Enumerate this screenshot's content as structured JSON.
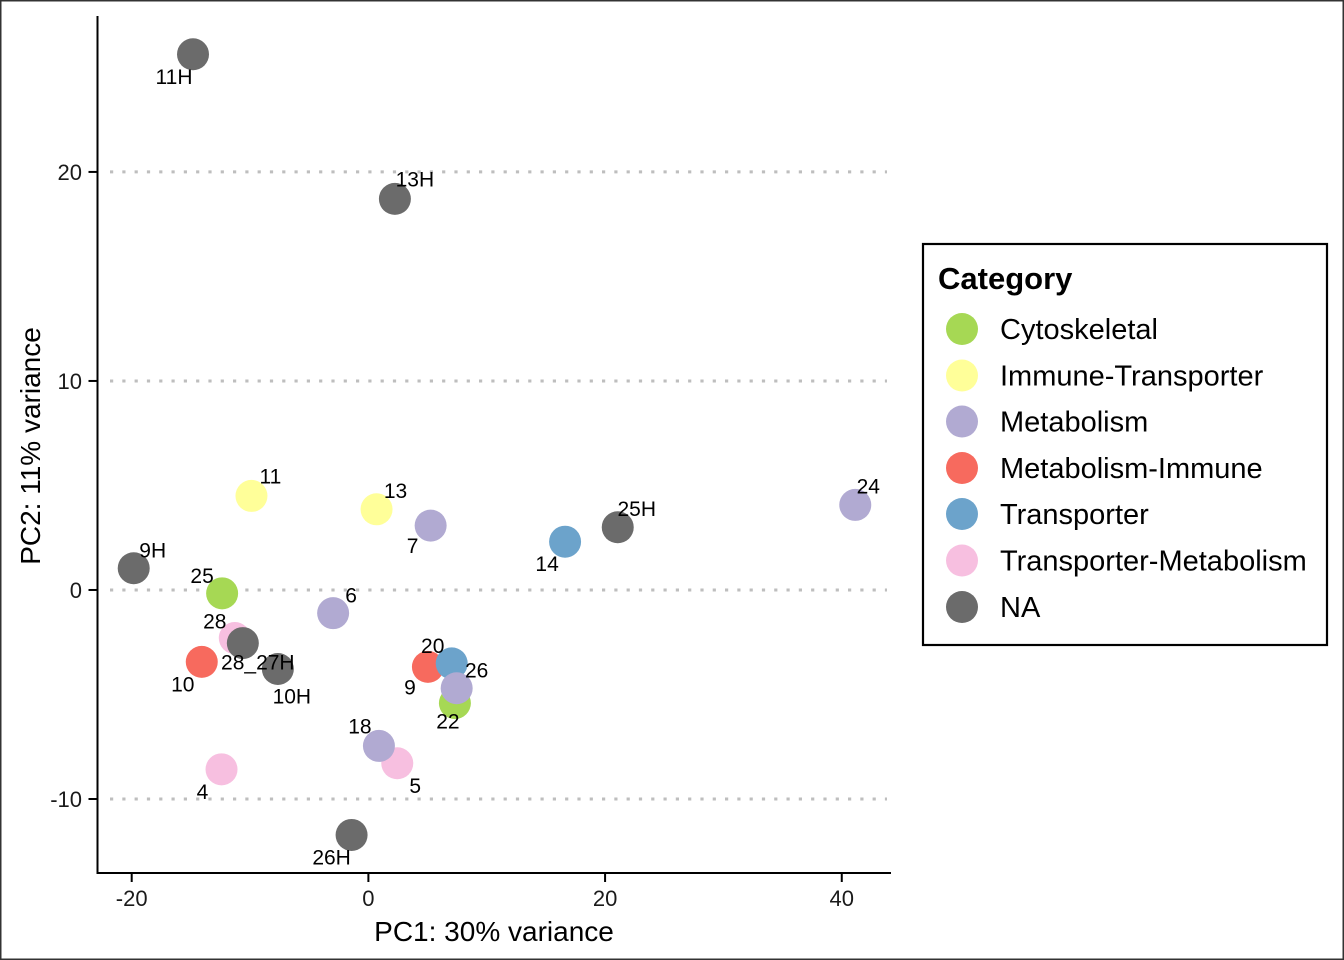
{
  "chart_data": {
    "type": "scatter",
    "title": "",
    "xlabel": "PC1: 30% variance",
    "ylabel": "PC2: 11% variance",
    "xlim": [
      -22.89,
      44.16
    ],
    "ylim": [
      -13.54,
      27.46
    ],
    "xticks": [
      -20,
      0,
      20,
      40
    ],
    "xtick_labels": [
      "-20",
      "0",
      "20",
      "40"
    ],
    "yticks": [
      -10,
      0,
      10,
      20
    ],
    "ytick_labels": [
      "-10",
      "0",
      "10",
      "20"
    ],
    "grid": {
      "major_y": true,
      "major_x": false,
      "style": "dotted"
    },
    "legend": {
      "title": "Category",
      "position": "right",
      "items": [
        {
          "label": "Cytoskeletal",
          "color": "#A6D854"
        },
        {
          "label": "Immune-Transporter",
          "color": "#FFFF99"
        },
        {
          "label": "Metabolism",
          "color": "#B1AAD2"
        },
        {
          "label": "Metabolism-Immune",
          "color": "#F76A5E"
        },
        {
          "label": "Transporter",
          "color": "#6CA3CB"
        },
        {
          "label": "Transporter-Metabolism",
          "color": "#F7BFE0"
        },
        {
          "label": "NA",
          "color": "#6B6B6B"
        }
      ]
    },
    "points": [
      {
        "label": "11H",
        "category": "NA",
        "x": -14.82,
        "y": 25.63
      },
      {
        "label": "13H",
        "category": "NA",
        "x": 2.24,
        "y": 18.71
      },
      {
        "label": "11",
        "category": "Immune-Transporter",
        "x": -9.88,
        "y": 4.5
      },
      {
        "label": "13",
        "category": "Immune-Transporter",
        "x": 0.69,
        "y": 3.86
      },
      {
        "label": "7",
        "category": "Metabolism",
        "x": 5.26,
        "y": 3.08
      },
      {
        "label": "14",
        "category": "Transporter",
        "x": 16.62,
        "y": 2.31
      },
      {
        "label": "25H",
        "category": "NA",
        "x": 21.07,
        "y": 3.0
      },
      {
        "label": "24",
        "category": "Metabolism",
        "x": 41.14,
        "y": 4.07
      },
      {
        "label": "9H",
        "category": "NA",
        "x": -19.83,
        "y": 1.04
      },
      {
        "label": "25",
        "category": "Cytoskeletal",
        "x": -12.36,
        "y": -0.16
      },
      {
        "label": "6",
        "category": "Metabolism",
        "x": -2.98,
        "y": -1.11
      },
      {
        "label": "28",
        "category": "Transporter-Metabolism",
        "x": -11.29,
        "y": -2.3
      },
      {
        "label": "28_27H",
        "category": "NA",
        "x": -10.61,
        "y": -2.54
      },
      {
        "label": "10",
        "category": "Metabolism-Immune",
        "x": -14.08,
        "y": -3.44
      },
      {
        "label": "10H",
        "category": "NA",
        "x": -7.65,
        "y": -3.78
      },
      {
        "label": "9",
        "category": "Metabolism-Immune",
        "x": 5.03,
        "y": -3.68
      },
      {
        "label": "22",
        "category": "Cytoskeletal",
        "x": 7.31,
        "y": -5.41
      },
      {
        "label": "20",
        "category": "Transporter",
        "x": 7.04,
        "y": -3.51
      },
      {
        "label": "26",
        "category": "Metabolism",
        "x": 7.46,
        "y": -4.7
      },
      {
        "label": "5",
        "category": "Transporter-Metabolism",
        "x": 2.44,
        "y": -8.29
      },
      {
        "label": "18",
        "category": "Metabolism",
        "x": 0.89,
        "y": -7.46
      },
      {
        "label": "4",
        "category": "Transporter-Metabolism",
        "x": -12.41,
        "y": -8.58
      },
      {
        "label": "26H",
        "category": "NA",
        "x": -1.42,
        "y": -11.72
      }
    ]
  }
}
